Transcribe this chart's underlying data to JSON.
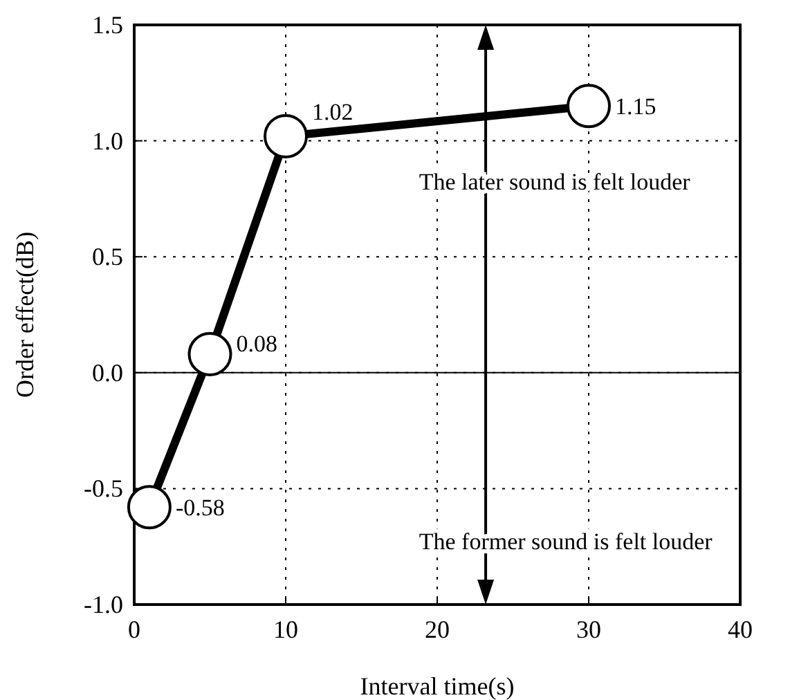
{
  "chart_data": {
    "type": "line",
    "xlabel": "Interval time(s)",
    "ylabel": "Order effect(dB)",
    "x": [
      1,
      5,
      10,
      30
    ],
    "series": [
      {
        "color": "#000000",
        "values": [
          -0.58,
          0.08,
          1.02,
          1.15
        ]
      }
    ],
    "xlim": [
      0,
      40
    ],
    "xticks": [
      0,
      10,
      20,
      30,
      40
    ],
    "ylim": [
      -1.0,
      1.5
    ],
    "yticks": [
      {
        "value": -1,
        "label": "-1.0"
      },
      {
        "value": -0.5,
        "label": "-0.5"
      },
      {
        "value": 0,
        "label": "0.0"
      },
      {
        "value": 0.5,
        "label": "0.5"
      },
      {
        "value": 1,
        "label": "1.0"
      },
      1.5
    ],
    "grid": true,
    "marker": "circle",
    "line_style": "solid",
    "data_labels": true,
    "ref_lines": [
      {
        "axis": "y",
        "value": 0,
        "color": "#000000"
      }
    ],
    "annotations": [
      "The later sound is felt louder",
      "The former sound is felt louder"
    ]
  }
}
